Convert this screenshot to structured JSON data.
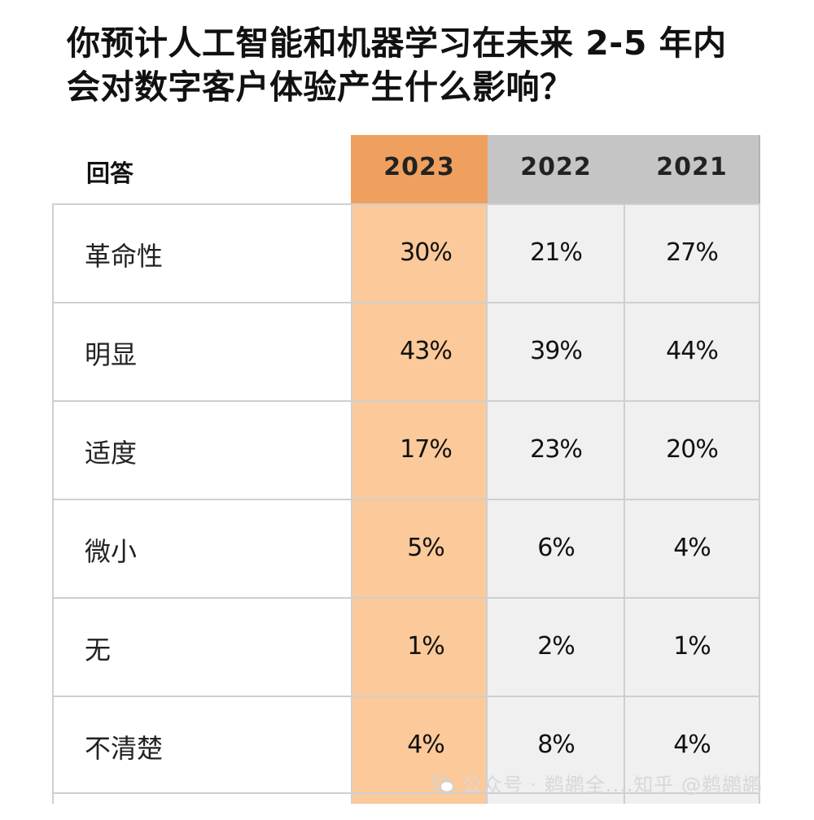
{
  "title": {
    "line1": "你预计人工智能和机器学习在未来 2-5 年内",
    "line2": "会对数字客户体验产生什么影响？"
  },
  "chart_data": {
    "type": "table",
    "header_label": "回答",
    "columns": [
      "2023",
      "2022",
      "2021"
    ],
    "rows": [
      {
        "label": "革命性",
        "values": [
          "30%",
          "21%",
          "27%"
        ]
      },
      {
        "label": "明显",
        "values": [
          "43%",
          "39%",
          "44%"
        ]
      },
      {
        "label": "适度",
        "values": [
          "17%",
          "23%",
          "20%"
        ]
      },
      {
        "label": "微小",
        "values": [
          "5%",
          "6%",
          "4%"
        ]
      },
      {
        "label": "无",
        "values": [
          "1%",
          "2%",
          "1%"
        ]
      },
      {
        "label": "不清楚",
        "values": [
          "4%",
          "8%",
          "4%"
        ]
      }
    ]
  },
  "colors": {
    "highlight_header": "#f0a05e",
    "highlight_column": "#fcc99a",
    "gray_header": "#c5c5c5",
    "gray_column": "#f0f0f0"
  },
  "watermark": {
    "icon": "wechat-icon",
    "text": "公众号 · 鹈鹕全....知乎 @鹈鹕鹕"
  }
}
